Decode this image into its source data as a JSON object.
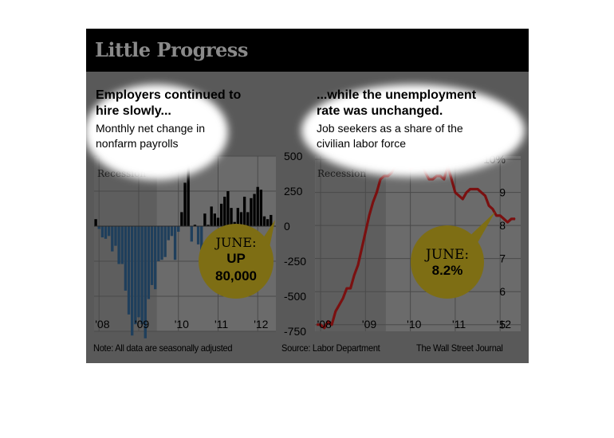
{
  "title": "Little Progress",
  "footer": {
    "note": "Note: All data are seasonally adjusted",
    "source": "Source: Labor Department",
    "credit": "The Wall Street Journal"
  },
  "colors": {
    "card_bg": "#595959",
    "plot_bg": "#6b6b6b",
    "recession_band": "#5e5e5e",
    "title_bar": "#000000",
    "bar_fill": "#1f3f5c",
    "bar_positive": "#000000",
    "line": "#7a1010",
    "line_highlight": "#d8202a",
    "callout": "#7e6e14",
    "halo": "#ffffff"
  },
  "chart_data": [
    {
      "type": "bar",
      "title": "Employers continued to hire slowly...",
      "subtitle": "Monthly net change in nonfarm payrolls",
      "annotation_band": "Recession",
      "callout": [
        "JUNE:",
        "UP",
        "80,000"
      ],
      "x": {
        "start": "2007-12",
        "end": "2012-06",
        "tick_labels": [
          "'08",
          "'09",
          "'10",
          "'11",
          "'12"
        ]
      },
      "y": {
        "ylim": [
          -750,
          500
        ],
        "ticks": [
          500,
          250,
          0,
          -250,
          -500,
          -750
        ],
        "tick_labels": [
          "500",
          "250",
          "0",
          "-250",
          "-500",
          "-750"
        ]
      },
      "recession": {
        "start": "2007-12",
        "end": "2009-06"
      },
      "values": [
        50,
        -20,
        -80,
        -90,
        -70,
        -180,
        -140,
        -270,
        -270,
        -460,
        -630,
        -780,
        -700,
        -650,
        -700,
        -800,
        -520,
        -420,
        -450,
        -250,
        -240,
        -220,
        -100,
        -70,
        -240,
        -40,
        100,
        310,
        520,
        -110,
        10,
        -130,
        -170,
        90,
        10,
        140,
        90,
        60,
        160,
        210,
        250,
        130,
        30,
        130,
        100,
        210,
        100,
        200,
        230,
        280,
        260,
        70,
        50,
        80
      ]
    },
    {
      "type": "line",
      "title": "...while the unemployment rate was unchanged.",
      "subtitle": "Job seekers as a share of the civilian labor force",
      "annotation_band": "Recession",
      "callout": [
        "JUNE:",
        "8.2%"
      ],
      "x": {
        "start": "2007-12",
        "end": "2012-06",
        "tick_labels": [
          "'08",
          "'09",
          "'10",
          "'11",
          "'12"
        ]
      },
      "y": {
        "ylim": [
          4.8,
          10.1
        ],
        "ticks": [
          10,
          9,
          8,
          7,
          6,
          5
        ],
        "tick_labels": [
          "10%",
          "9",
          "8",
          "7",
          "6",
          "5"
        ]
      },
      "recession": {
        "start": "2007-12",
        "end": "2009-06"
      },
      "values": [
        5.0,
        5.0,
        4.9,
        5.1,
        5.0,
        5.4,
        5.6,
        5.8,
        6.1,
        6.1,
        6.5,
        6.8,
        7.3,
        7.8,
        8.3,
        8.7,
        9.0,
        9.4,
        9.5,
        9.5,
        9.6,
        9.8,
        10.0,
        9.9,
        9.9,
        9.7,
        9.8,
        9.9,
        9.9,
        9.6,
        9.4,
        9.4,
        9.5,
        9.5,
        9.4,
        9.8,
        9.4,
        9.0,
        8.9,
        8.8,
        9.0,
        9.1,
        9.1,
        9.1,
        9.0,
        8.9,
        8.6,
        8.5,
        8.3,
        8.3,
        8.2,
        8.1,
        8.2,
        8.2
      ],
      "highlight_range": [
        21,
        27
      ]
    }
  ]
}
